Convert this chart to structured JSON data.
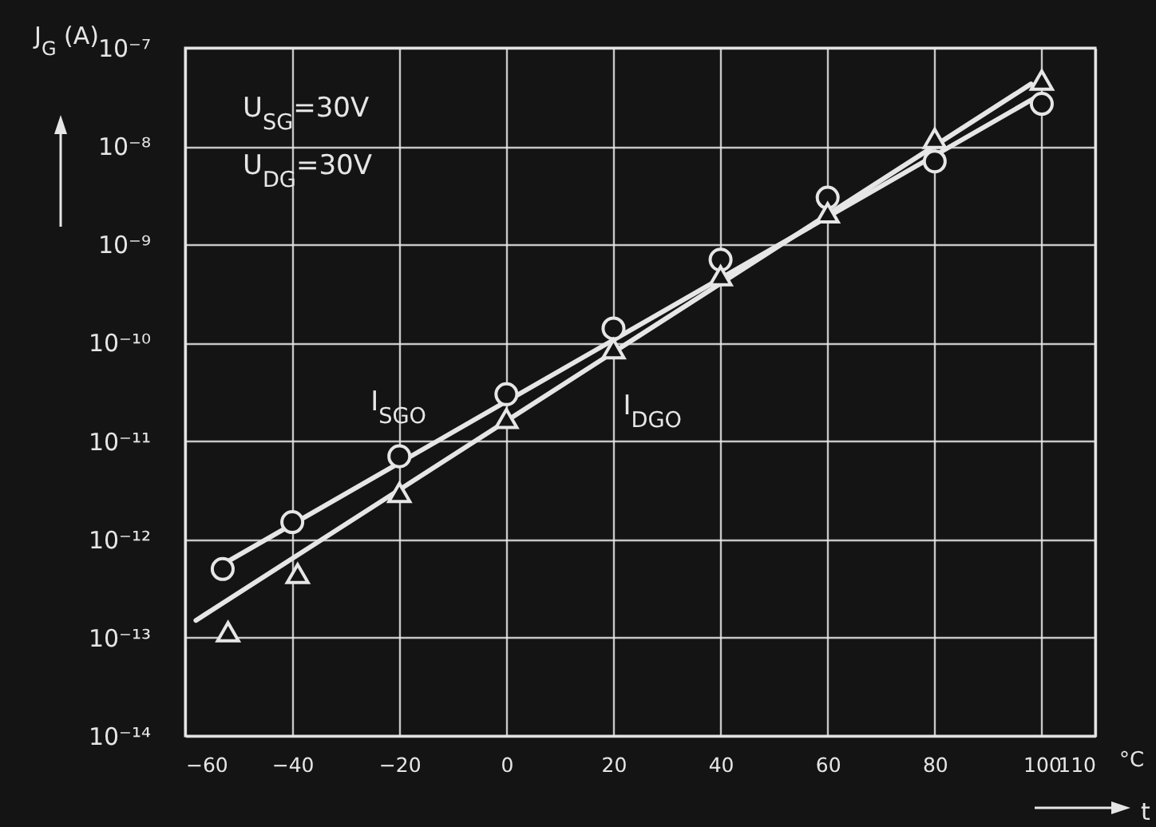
{
  "chart_data": {
    "type": "scatter",
    "xlabel": "t",
    "ylabel": "J$_{G}$ (A)",
    "annotations": [
      "U$_{SG}$=30V",
      "U$_{DG}$=30V",
      "°C"
    ],
    "xlim": [
      -60,
      110
    ],
    "xticks": [
      -60,
      -40,
      -20,
      0,
      20,
      40,
      60,
      80,
      100,
      110
    ],
    "ylim": [
      1e-14,
      1e-07
    ],
    "yticks": [
      {
        "value": 1e-14,
        "label": "10⁻¹⁴"
      },
      {
        "value": 1e-13,
        "label": "10⁻¹³"
      },
      {
        "value": 1e-12,
        "label": "10⁻¹²"
      },
      {
        "value": 1e-11,
        "label": "10⁻¹¹"
      },
      {
        "value": 1e-10,
        "label": "10⁻¹⁰"
      },
      {
        "value": 1e-09,
        "label": "10⁻⁹"
      },
      {
        "value": 1e-08,
        "label": "10⁻⁸"
      },
      {
        "value": 1e-07,
        "label": "10⁻⁷"
      }
    ],
    "log": "y",
    "grid": true,
    "series": [
      {
        "name": "I$_{SGO}$",
        "type": "scatter",
        "marker": "circle",
        "color": "#e6e6e6",
        "x": [
          -53,
          -40,
          -20,
          0,
          20,
          40,
          60,
          80,
          100
        ],
        "values": [
          5e-13,
          1.5e-12,
          7e-12,
          3e-11,
          1.4e-10,
          7e-10,
          3e-09,
          7e-09,
          2.7e-08
        ]
      },
      {
        "type": "line",
        "color": "#e6e6e6",
        "x": [
          -52,
          100
        ],
        "values": [
          6e-13,
          3.4e-08
        ]
      },
      {
        "name": "I$_{DGO}$",
        "type": "scatter",
        "marker": "triangle",
        "color": "#e6e6e6",
        "x": [
          -52,
          -39,
          -20,
          0,
          20,
          40,
          60,
          80,
          100
        ],
        "values": [
          1.15e-13,
          4.5e-13,
          3e-12,
          1.7e-11,
          8.7e-11,
          4.8e-10,
          2.1e-09,
          1.2e-08,
          4.7e-08
        ]
      },
      {
        "type": "line",
        "color": "#e6e6e6",
        "x": [
          -58,
          98
        ],
        "values": [
          1.5e-13,
          4.3e-08
        ]
      }
    ]
  }
}
